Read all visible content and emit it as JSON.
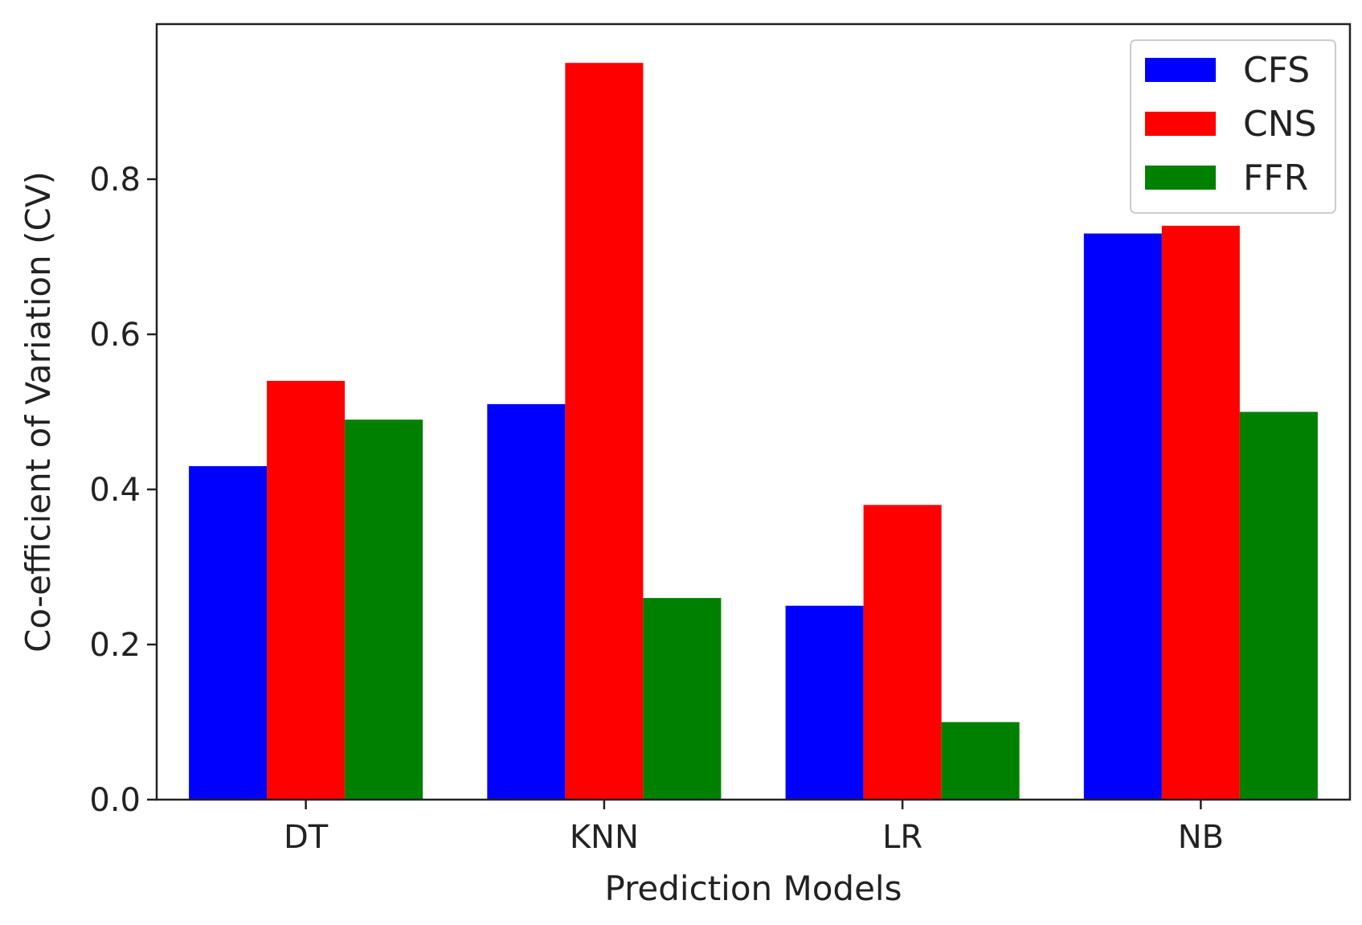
{
  "chart_data": {
    "type": "bar",
    "title": "",
    "xlabel": "Prediction Models",
    "ylabel": "Co-efficient of Variation (CV)",
    "categories": [
      "DT",
      "KNN",
      "LR",
      "NB"
    ],
    "series": [
      {
        "name": "CFS",
        "color": "#0000ff",
        "values": [
          0.43,
          0.51,
          0.25,
          0.73
        ]
      },
      {
        "name": "CNS",
        "color": "#ff0000",
        "values": [
          0.54,
          0.95,
          0.38,
          0.74
        ]
      },
      {
        "name": "FFR",
        "color": "#008000",
        "values": [
          0.49,
          0.26,
          0.1,
          0.5
        ]
      }
    ],
    "ylim": [
      0,
      1.0
    ],
    "yticks": [
      0.0,
      0.2,
      0.4,
      0.6,
      0.8
    ],
    "ytick_labels": [
      "0.0",
      "0.2",
      "0.4",
      "0.6",
      "0.8"
    ],
    "grid": false,
    "legend_position": "top-right"
  }
}
